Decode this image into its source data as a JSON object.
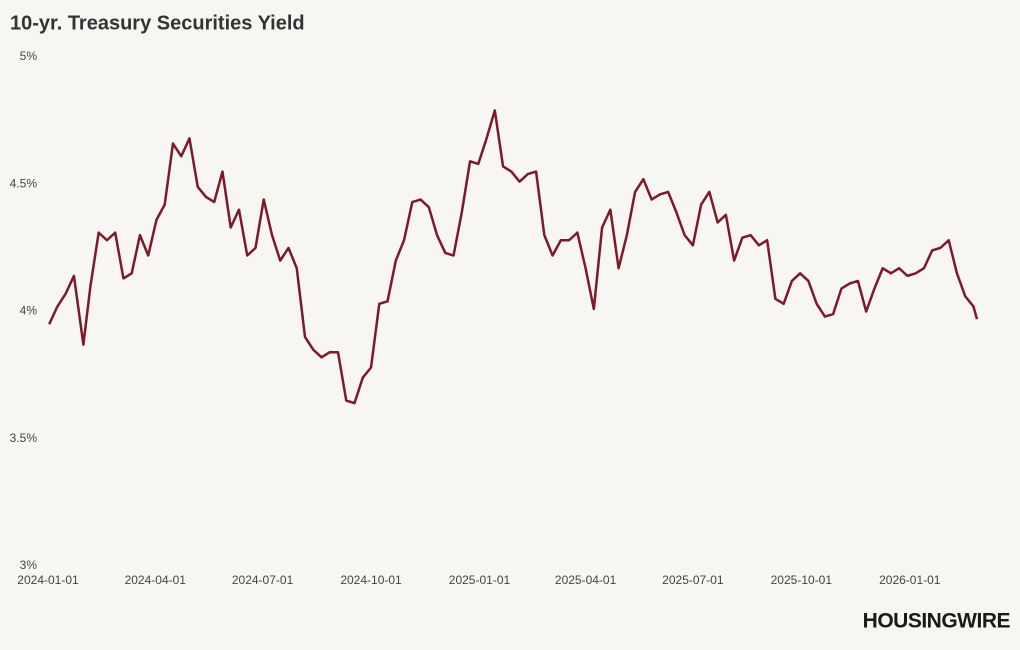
{
  "chart_data": {
    "type": "line",
    "title": "10-yr. Treasury Securities Yield",
    "brand": "HOUSINGWIRE",
    "x": [
      "2024-01-02",
      "2024-01-09",
      "2024-01-16",
      "2024-01-23",
      "2024-01-31",
      "2024-02-06",
      "2024-02-13",
      "2024-02-20",
      "2024-02-27",
      "2024-03-05",
      "2024-03-12",
      "2024-03-19",
      "2024-03-26",
      "2024-04-02",
      "2024-04-09",
      "2024-04-16",
      "2024-04-23",
      "2024-04-30",
      "2024-05-07",
      "2024-05-14",
      "2024-05-21",
      "2024-05-28",
      "2024-06-04",
      "2024-06-11",
      "2024-06-18",
      "2024-06-25",
      "2024-07-02",
      "2024-07-09",
      "2024-07-16",
      "2024-07-23",
      "2024-07-30",
      "2024-08-06",
      "2024-08-13",
      "2024-08-20",
      "2024-08-27",
      "2024-09-03",
      "2024-09-10",
      "2024-09-17",
      "2024-09-24",
      "2024-10-01",
      "2024-10-08",
      "2024-10-15",
      "2024-10-22",
      "2024-10-29",
      "2024-11-05",
      "2024-11-12",
      "2024-11-19",
      "2024-11-26",
      "2024-12-03",
      "2024-12-10",
      "2024-12-17",
      "2024-12-24",
      "2024-12-31",
      "2025-01-07",
      "2025-01-14",
      "2025-01-21",
      "2025-01-28",
      "2025-02-04",
      "2025-02-11",
      "2025-02-18",
      "2025-02-25",
      "2025-03-04",
      "2025-03-11",
      "2025-03-18",
      "2025-03-25",
      "2025-04-01",
      "2025-04-08",
      "2025-04-15",
      "2025-04-22",
      "2025-04-29",
      "2025-05-06",
      "2025-05-13",
      "2025-05-20",
      "2025-05-27",
      "2025-06-03",
      "2025-06-10",
      "2025-06-17",
      "2025-06-24",
      "2025-07-01",
      "2025-07-08",
      "2025-07-15",
      "2025-07-22",
      "2025-07-29",
      "2025-08-05",
      "2025-08-12",
      "2025-08-19",
      "2025-08-26",
      "2025-09-02",
      "2025-09-09",
      "2025-09-16",
      "2025-09-23",
      "2025-09-30",
      "2025-10-07",
      "2025-10-14",
      "2025-10-21",
      "2025-10-28",
      "2025-11-04",
      "2025-11-11",
      "2025-11-18",
      "2025-11-25",
      "2025-12-02",
      "2025-12-09",
      "2025-12-16",
      "2025-12-23",
      "2025-12-30",
      "2026-01-06",
      "2026-01-13",
      "2026-01-20",
      "2026-01-27",
      "2026-02-03",
      "2026-02-10",
      "2026-02-17",
      "2026-02-24",
      "2026-02-27"
    ],
    "series": [
      {
        "name": "10-yr. Treasury Securities Yield",
        "color": "#7b1a28",
        "values": [
          3.95,
          4.02,
          4.07,
          4.14,
          3.87,
          4.1,
          4.31,
          4.28,
          4.31,
          4.13,
          4.15,
          4.3,
          4.22,
          4.36,
          4.42,
          4.66,
          4.61,
          4.68,
          4.49,
          4.45,
          4.43,
          4.55,
          4.33,
          4.4,
          4.22,
          4.25,
          4.44,
          4.3,
          4.2,
          4.25,
          4.17,
          3.9,
          3.85,
          3.82,
          3.84,
          3.84,
          3.65,
          3.64,
          3.74,
          3.78,
          4.03,
          4.04,
          4.2,
          4.28,
          4.43,
          4.44,
          4.41,
          4.3,
          4.23,
          4.22,
          4.39,
          4.59,
          4.58,
          4.68,
          4.79,
          4.57,
          4.55,
          4.51,
          4.54,
          4.55,
          4.3,
          4.22,
          4.28,
          4.28,
          4.31,
          4.17,
          4.01,
          4.33,
          4.4,
          4.17,
          4.3,
          4.47,
          4.52,
          4.44,
          4.46,
          4.47,
          4.39,
          4.3,
          4.26,
          4.42,
          4.47,
          4.35,
          4.38,
          4.2,
          4.29,
          4.3,
          4.26,
          4.28,
          4.05,
          4.03,
          4.12,
          4.15,
          4.12,
          4.03,
          3.98,
          3.99,
          4.09,
          4.11,
          4.12,
          4.0,
          4.09,
          4.17,
          4.15,
          4.17,
          4.14,
          4.15,
          4.17,
          4.24,
          4.25,
          4.28,
          4.15,
          4.06,
          4.02,
          3.97
        ]
      }
    ],
    "xlim": [
      "2024-01-01",
      "2026-03-27"
    ],
    "xticks": [
      "2024-01-01",
      "2024-04-01",
      "2024-07-01",
      "2024-10-01",
      "2025-01-01",
      "2025-04-01",
      "2025-07-01",
      "2025-10-01",
      "2026-01-01"
    ],
    "ylim": [
      3,
      5
    ],
    "yticks": [
      {
        "value": 3,
        "label": "3%"
      },
      {
        "value": 3.5,
        "label": "3.5%"
      },
      {
        "value": 4,
        "label": "4%"
      },
      {
        "value": 4.5,
        "label": "4.5%"
      },
      {
        "value": 5,
        "label": "5%"
      }
    ],
    "grid": false
  }
}
